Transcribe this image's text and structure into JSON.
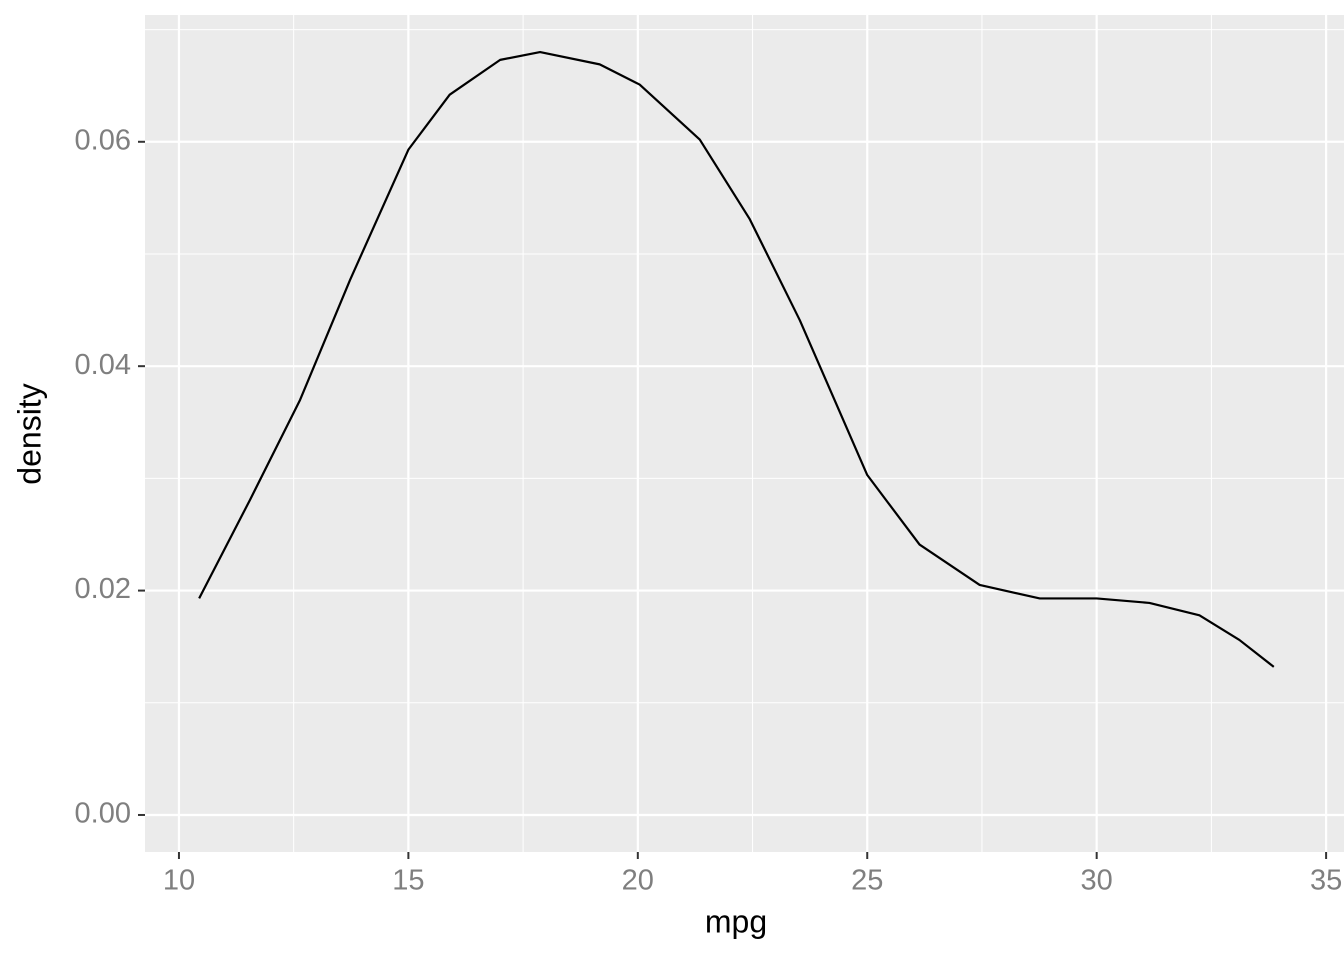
{
  "chart_data": {
    "type": "line",
    "x_label": "mpg",
    "y_label": "density",
    "x": [
      10.44,
      11.55,
      12.64,
      13.73,
      15.0,
      15.9,
      17.0,
      17.87,
      19.17,
      20.04,
      21.35,
      22.44,
      23.53,
      25.0,
      26.14,
      27.45,
      28.76,
      30.0,
      31.15,
      32.24,
      33.11,
      33.86
    ],
    "series": [
      {
        "name": "density",
        "color": "#000000",
        "values": [
          0.0193,
          0.0281,
          0.037,
          0.0477,
          0.0593,
          0.0642,
          0.0673,
          0.068,
          0.0669,
          0.0651,
          0.0602,
          0.0531,
          0.0441,
          0.0303,
          0.0241,
          0.0205,
          0.0193,
          0.0193,
          0.0189,
          0.0178,
          0.0156,
          0.0132
        ]
      }
    ],
    "xlim": [
      9.26,
      35.39
    ],
    "ylim": [
      -0.0033,
      0.0713
    ],
    "xticks": [
      10,
      15,
      20,
      25,
      30,
      35
    ],
    "yticks": [
      {
        "value": 0,
        "label": "0.00"
      },
      0.02,
      0.04,
      0.06
    ],
    "xminor": [
      12.5,
      17.5,
      22.5,
      27.5,
      32.5
    ],
    "yminor": [
      0.01,
      0.03,
      0.05,
      0.07
    ],
    "grid": true,
    "panel_color": "#ebebeb",
    "grid_color": "#ffffff"
  }
}
